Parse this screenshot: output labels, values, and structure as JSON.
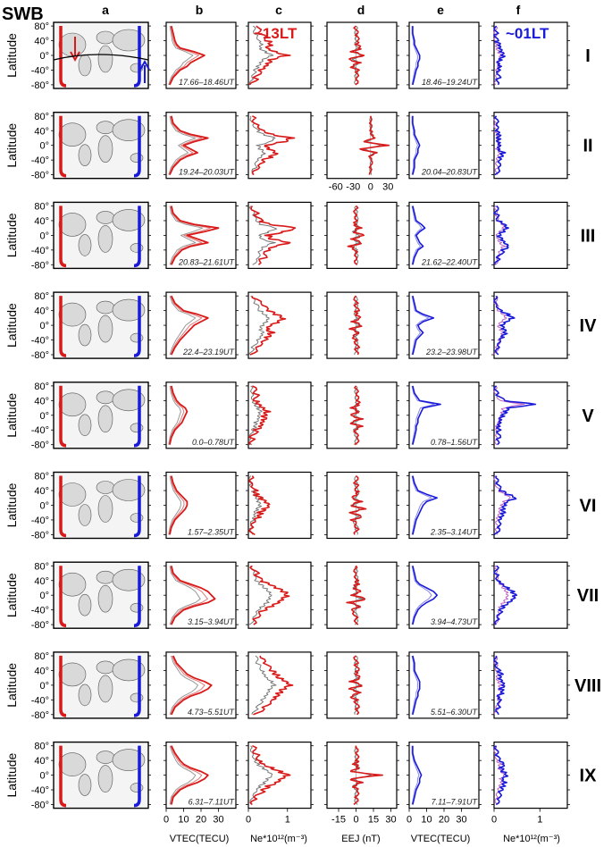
{
  "figure_label": "SWB",
  "column_titles": [
    "a",
    "b",
    "c",
    "d",
    "e",
    "f"
  ],
  "row_labels": [
    "I",
    "II",
    "III",
    "IV",
    "V",
    "VI",
    "VII",
    "VIII",
    "IX"
  ],
  "annotations": {
    "red_local_time": "~13LT",
    "blue_local_time": "~01LT"
  },
  "y_axis": {
    "label": "Latitude",
    "ticks": [
      "80°",
      "40°",
      "0°",
      "-40°",
      "-80°"
    ],
    "range": [
      -90,
      90
    ]
  },
  "x_axes": {
    "b": {
      "label": "VTEC(TECU)",
      "ticks": [
        "0",
        "10",
        "20",
        "30"
      ],
      "range": [
        0,
        40
      ]
    },
    "c": {
      "label": "Ne*10¹²(m⁻³)",
      "ticks": [
        "0",
        "1"
      ],
      "range": [
        0,
        1.6
      ]
    },
    "d": {
      "label": "EEJ (nT)",
      "ticks": [
        "-15",
        "0",
        "15",
        "30"
      ],
      "range": [
        -25,
        35
      ]
    },
    "d_row2": {
      "ticks": [
        "-60",
        "-30",
        "0",
        "30"
      ],
      "range": [
        -75,
        45
      ]
    },
    "e": {
      "label": "VTEC(TECU)",
      "ticks": [
        "0",
        "10",
        "20",
        "30"
      ],
      "range": [
        0,
        40
      ]
    },
    "f": {
      "label": "Ne*10¹²(m⁻³)",
      "ticks": [
        "0",
        "1"
      ],
      "range": [
        0,
        1.6
      ]
    }
  },
  "colors": {
    "red": "#d91a1a",
    "blue": "#1a1ad9",
    "gray": "#888888",
    "land": "#d9d9d9",
    "pink": "#e07a7a",
    "lightblue": "#8a8ae8"
  },
  "chart_data": {
    "type": "line",
    "time_ranges_red": [
      "17.66–18.46UT",
      "19.24–20.03UT",
      "20.83–21.61UT",
      "22.4–23.19UT",
      "0.0–0.78UT",
      "1.57–2.35UT",
      "3.15–3.94UT",
      "4.73–5.51UT",
      "6.31–7.11UT"
    ],
    "time_ranges_blue": [
      "18.46–19.24UT",
      "20.04–20.83UT",
      "21.62–22.40UT",
      "23.2–23.98UT",
      "0.78–1.56UT",
      "2.35–3.14UT",
      "3.94–4.73UT",
      "5.51–6.30UT",
      "7.11–7.91UT"
    ],
    "latitudes": [
      -80,
      -60,
      -40,
      -30,
      -20,
      -10,
      0,
      10,
      20,
      30,
      40,
      60,
      80
    ],
    "vtec_day": [
      [
        2,
        4,
        8,
        12,
        14,
        18,
        22,
        16,
        8,
        6,
        5,
        4,
        3
      ],
      [
        2,
        4,
        8,
        12,
        18,
        14,
        10,
        16,
        24,
        14,
        8,
        4,
        3
      ],
      [
        3,
        5,
        9,
        14,
        24,
        18,
        12,
        22,
        30,
        16,
        8,
        4,
        3
      ],
      [
        3,
        5,
        8,
        10,
        12,
        14,
        16,
        20,
        24,
        18,
        10,
        5,
        3
      ],
      [
        2,
        3,
        5,
        7,
        9,
        10,
        11,
        12,
        11,
        8,
        6,
        4,
        3
      ],
      [
        2,
        3,
        5,
        7,
        9,
        11,
        12,
        12,
        10,
        8,
        6,
        4,
        3
      ],
      [
        3,
        5,
        10,
        16,
        24,
        28,
        26,
        24,
        20,
        14,
        8,
        4,
        3
      ],
      [
        3,
        5,
        10,
        14,
        20,
        24,
        26,
        22,
        16,
        12,
        10,
        6,
        4
      ],
      [
        3,
        4,
        8,
        12,
        18,
        22,
        24,
        20,
        14,
        10,
        8,
        5,
        3
      ]
    ],
    "ne_day": [
      [
        0.1,
        0.2,
        0.3,
        0.4,
        0.5,
        0.6,
        1.0,
        0.7,
        0.5,
        0.6,
        0.5,
        0.3,
        0.2
      ],
      [
        0.1,
        0.3,
        0.4,
        0.6,
        0.7,
        0.5,
        0.4,
        0.9,
        1.1,
        0.6,
        0.4,
        0.2,
        0.1
      ],
      [
        0.2,
        0.4,
        0.5,
        0.7,
        1.1,
        0.6,
        0.5,
        0.9,
        1.2,
        0.5,
        0.3,
        0.2,
        0.1
      ],
      [
        0.1,
        0.2,
        0.4,
        0.5,
        0.6,
        0.5,
        0.6,
        0.8,
        0.9,
        0.7,
        0.5,
        0.3,
        0.1
      ],
      [
        0.1,
        0.1,
        0.2,
        0.3,
        0.3,
        0.4,
        0.4,
        0.5,
        0.4,
        0.3,
        0.2,
        0.2,
        0.1
      ],
      [
        0.1,
        0.1,
        0.2,
        0.3,
        0.3,
        0.4,
        0.5,
        0.4,
        0.3,
        0.2,
        0.2,
        0.1,
        0.1
      ],
      [
        0.1,
        0.2,
        0.4,
        0.6,
        0.8,
        0.9,
        1.0,
        0.9,
        0.7,
        0.5,
        0.3,
        0.2,
        0.1
      ],
      [
        0.2,
        0.4,
        0.6,
        0.7,
        0.8,
        0.9,
        1.1,
        1.0,
        0.8,
        0.7,
        0.6,
        0.4,
        0.3
      ],
      [
        0.1,
        0.2,
        0.4,
        0.5,
        0.7,
        0.8,
        1.0,
        0.8,
        0.6,
        0.4,
        0.3,
        0.2,
        0.1
      ]
    ],
    "eej_day": [
      [
        0,
        0,
        1,
        -4,
        3,
        -6,
        8,
        -3,
        4,
        0,
        1,
        0,
        0
      ],
      [
        0,
        0,
        2,
        -3,
        10,
        -20,
        30,
        -12,
        8,
        2,
        1,
        0,
        0
      ],
      [
        0,
        1,
        0,
        -5,
        5,
        -4,
        6,
        -3,
        3,
        -1,
        1,
        0,
        0
      ],
      [
        0,
        1,
        0,
        -2,
        3,
        -4,
        5,
        -3,
        3,
        -1,
        1,
        0,
        0
      ],
      [
        0,
        1,
        -2,
        4,
        -5,
        5,
        -4,
        3,
        -3,
        2,
        1,
        0,
        0
      ],
      [
        0,
        1,
        -3,
        5,
        -6,
        7,
        -5,
        4,
        -3,
        2,
        1,
        0,
        0
      ],
      [
        0,
        1,
        -3,
        4,
        -6,
        9,
        -4,
        3,
        -2,
        1,
        1,
        0,
        0
      ],
      [
        0,
        1,
        0,
        -4,
        4,
        -5,
        6,
        -4,
        3,
        -1,
        1,
        0,
        0
      ],
      [
        0,
        0,
        1,
        -3,
        4,
        -5,
        22,
        -4,
        3,
        -1,
        1,
        0,
        0
      ]
    ],
    "vtec_night": [
      [
        2,
        3,
        4,
        5,
        5,
        6,
        6,
        5,
        4,
        3,
        3,
        2,
        2
      ],
      [
        2,
        3,
        3,
        4,
        5,
        5,
        6,
        5,
        4,
        3,
        3,
        2,
        2
      ],
      [
        2,
        3,
        5,
        8,
        6,
        5,
        4,
        6,
        9,
        7,
        4,
        3,
        2
      ],
      [
        2,
        3,
        4,
        6,
        8,
        6,
        5,
        8,
        14,
        8,
        4,
        3,
        2
      ],
      [
        2,
        3,
        4,
        4,
        5,
        5,
        6,
        7,
        8,
        18,
        6,
        3,
        2
      ],
      [
        2,
        3,
        4,
        5,
        6,
        7,
        8,
        10,
        16,
        10,
        5,
        3,
        2
      ],
      [
        2,
        3,
        5,
        7,
        10,
        14,
        16,
        14,
        10,
        6,
        4,
        3,
        2
      ],
      [
        2,
        3,
        4,
        5,
        5,
        6,
        6,
        6,
        5,
        4,
        3,
        3,
        2
      ],
      [
        2,
        3,
        4,
        5,
        6,
        6,
        7,
        6,
        5,
        4,
        3,
        2,
        2
      ]
    ],
    "ne_night": [
      [
        0.05,
        0.1,
        0.1,
        0.15,
        0.1,
        0.15,
        0.2,
        0.15,
        0.1,
        0.1,
        0.05,
        0.05,
        0.05
      ],
      [
        0.05,
        0.1,
        0.1,
        0.15,
        0.2,
        0.1,
        0.15,
        0.1,
        0.1,
        0.1,
        0.05,
        0.05,
        0.05
      ],
      [
        0.05,
        0.1,
        0.2,
        0.3,
        0.2,
        0.15,
        0.1,
        0.2,
        0.3,
        0.25,
        0.1,
        0.05,
        0.05
      ],
      [
        0.05,
        0.1,
        0.15,
        0.2,
        0.25,
        0.2,
        0.15,
        0.25,
        0.4,
        0.3,
        0.15,
        0.05,
        0.05
      ],
      [
        0.05,
        0.1,
        0.1,
        0.1,
        0.15,
        0.15,
        0.2,
        0.25,
        0.3,
        0.9,
        0.2,
        0.05,
        0.05
      ],
      [
        0.05,
        0.1,
        0.1,
        0.15,
        0.2,
        0.2,
        0.25,
        0.3,
        0.5,
        0.3,
        0.15,
        0.05,
        0.05
      ],
      [
        0.05,
        0.1,
        0.15,
        0.2,
        0.3,
        0.4,
        0.45,
        0.4,
        0.3,
        0.2,
        0.1,
        0.05,
        0.05
      ],
      [
        0.05,
        0.1,
        0.15,
        0.1,
        0.2,
        0.15,
        0.2,
        0.15,
        0.1,
        0.15,
        0.1,
        0.05,
        0.05
      ],
      [
        0.05,
        0.1,
        0.15,
        0.2,
        0.25,
        0.2,
        0.3,
        0.2,
        0.15,
        0.2,
        0.1,
        0.05,
        0.05
      ]
    ]
  }
}
